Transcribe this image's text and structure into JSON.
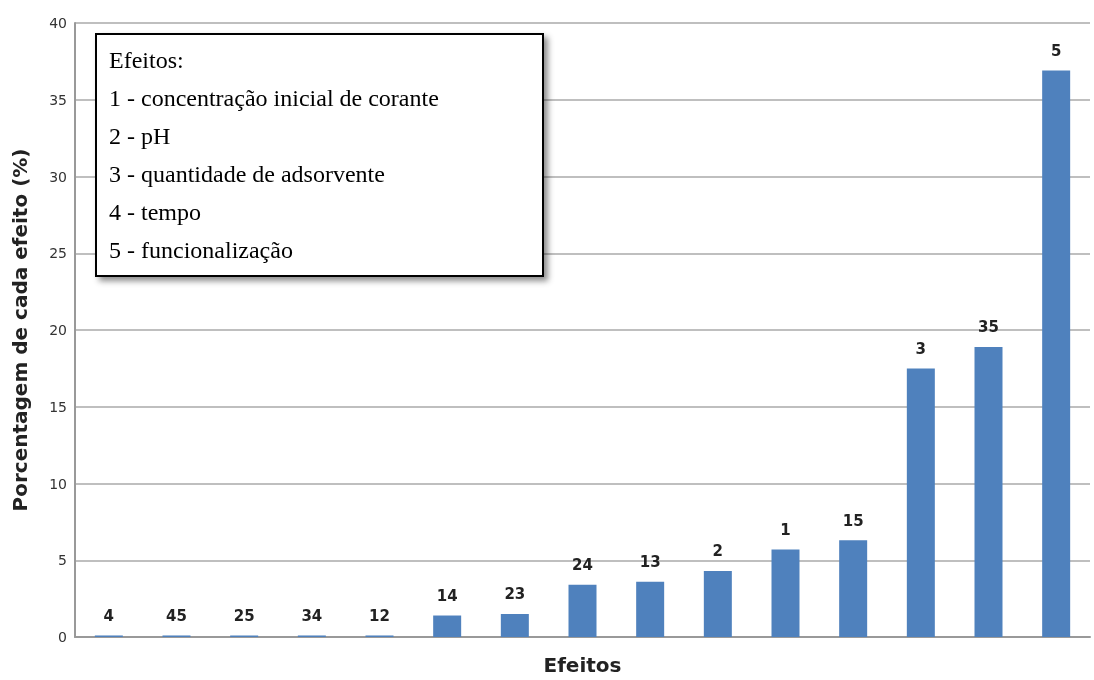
{
  "chart_data": {
    "type": "bar",
    "xlabel": "Efeitos",
    "ylabel": "Porcentagem de cada efeito (%)",
    "categories": [
      "4",
      "45",
      "25",
      "34",
      "12",
      "14",
      "23",
      "24",
      "13",
      "2",
      "1",
      "15",
      "3",
      "35",
      "5"
    ],
    "values": [
      0.1,
      0.1,
      0.1,
      0.1,
      0.1,
      1.4,
      1.5,
      3.4,
      3.6,
      4.3,
      5.7,
      6.3,
      17.5,
      18.9,
      36.9
    ],
    "color": "#4f81bd",
    "ylim": [
      0,
      40
    ],
    "yticks": [
      0,
      5,
      10,
      15,
      20,
      25,
      30,
      35,
      40
    ],
    "grid": "y",
    "annotations": [
      "Efeitos:",
      "1 - concentração inicial de corante",
      "2 - pH",
      "3 - quantidade de adsorvente",
      "4 - tempo",
      "5 - funcionalização"
    ]
  }
}
